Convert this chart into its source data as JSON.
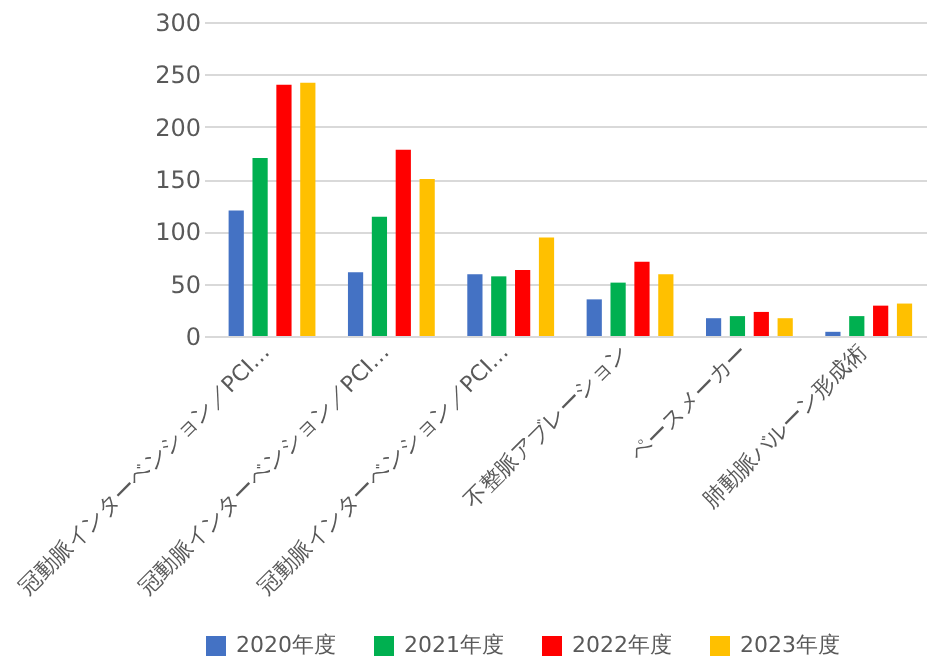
{
  "chart_data": {
    "type": "bar",
    "categories": [
      "冠動脈インターベンション／PCI…",
      "冠動脈インターベンション／PCI…",
      "冠動脈インターベンション／PCI…",
      "不整脈アブレーション",
      "ペースメーカー",
      "肺動脈バルーン形成術"
    ],
    "series": [
      {
        "name": "2020年度",
        "color": "#4472c4",
        "values": [
          120,
          61,
          59,
          35,
          17,
          4
        ]
      },
      {
        "name": "2021年度",
        "color": "#00b050",
        "values": [
          170,
          114,
          57,
          51,
          19,
          19
        ]
      },
      {
        "name": "2022年度",
        "color": "#ff0000",
        "values": [
          240,
          178,
          63,
          71,
          23,
          29
        ]
      },
      {
        "name": "2023年度",
        "color": "#ffc000",
        "values": [
          242,
          150,
          94,
          59,
          17,
          31
        ]
      }
    ],
    "ylim": [
      0,
      300
    ],
    "yticks": [
      0,
      50,
      100,
      150,
      200,
      250,
      300
    ],
    "grid": "y",
    "legend": "bottom"
  }
}
